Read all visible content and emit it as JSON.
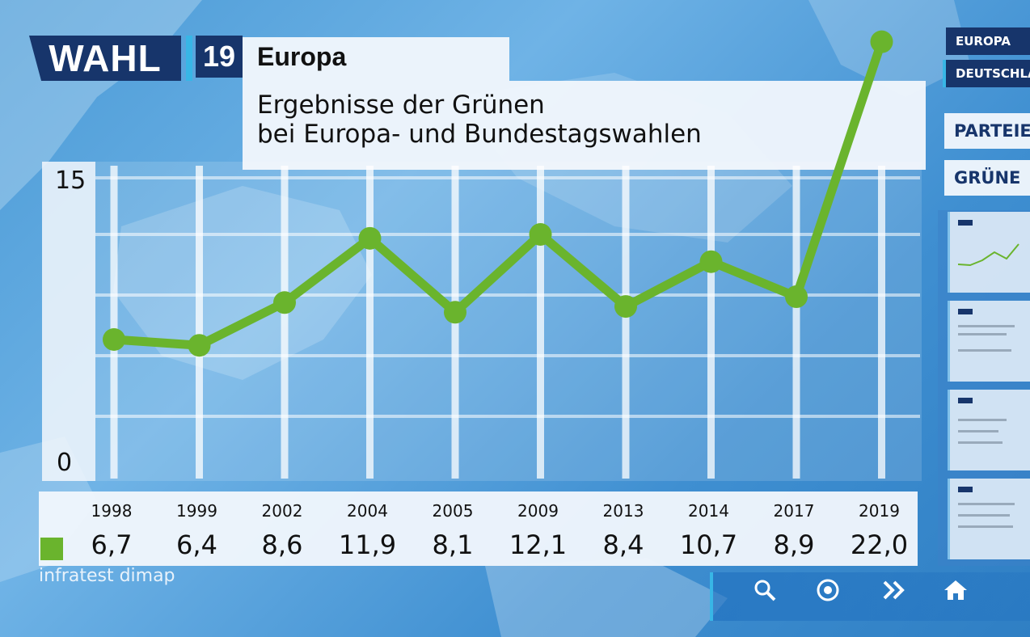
{
  "header": {
    "logo_wahl": "WAHL",
    "logo_year": "19",
    "title": "Europa",
    "subtitle_line1": "Ergebnisse der Grünen",
    "subtitle_line2": "bei Europa- und Bundestagswahlen"
  },
  "source": "infratest dimap",
  "nav": {
    "europa": "EUROPA",
    "deutschland": "DEUTSCHLA",
    "parteien": "PARTEIEN",
    "gruene": "GRÜNE"
  },
  "controls": {
    "search_icon": "magnifier",
    "target_icon": "circle-dot",
    "forward_icon": "double-chevron-right",
    "home_icon": "house"
  },
  "colors": {
    "series": "#6ab42d",
    "brand": "#17356b"
  },
  "chart_data": {
    "type": "line",
    "categories": [
      "1998",
      "1999",
      "2002",
      "2004",
      "2005",
      "2009",
      "2013",
      "2014",
      "2017",
      "2019"
    ],
    "value_labels": [
      "6,7",
      "6,4",
      "8,6",
      "11,9",
      "8,1",
      "12,1",
      "8,4",
      "10,7",
      "8,9",
      "22,0"
    ],
    "series": [
      {
        "values": [
          6.7,
          6.4,
          8.6,
          11.9,
          8.1,
          12.1,
          8.4,
          10.7,
          8.9,
          22.0
        ]
      }
    ],
    "y_tick_labels": [
      "15",
      "0"
    ],
    "ylim": [
      0,
      15
    ],
    "grid": true,
    "legend": "bottom-left"
  }
}
